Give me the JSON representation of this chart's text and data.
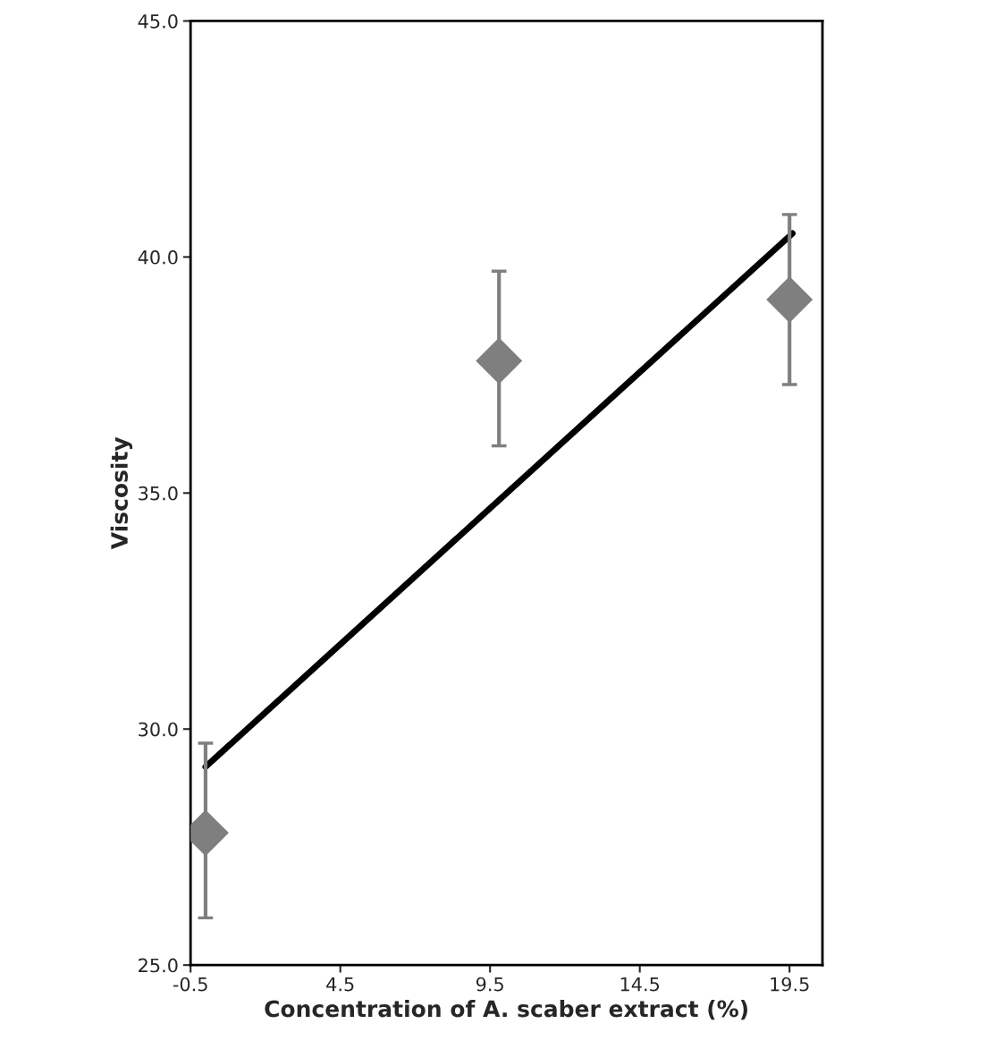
{
  "chart_data": {
    "type": "scatter",
    "xlabel": "Concentration of A. scaber extract (%)",
    "ylabel": "Viscosity",
    "xlim": [
      -0.5,
      20.6
    ],
    "ylim": [
      25,
      45
    ],
    "xticks": [
      -0.5,
      4.5,
      9.5,
      14.5,
      19.5
    ],
    "yticks": [
      {
        "value": 25,
        "label": "25.0"
      },
      {
        "value": 30,
        "label": "30.0"
      },
      {
        "value": 35,
        "label": "35.0"
      },
      {
        "value": 40,
        "label": "40.0"
      },
      {
        "value": 45,
        "label": "45.0"
      }
    ],
    "grid": false,
    "legend": false,
    "marker": "diamond",
    "series": [
      {
        "type": "line",
        "color": "#000000",
        "x": [
          0,
          19.6
        ],
        "values": [
          29.2,
          40.5
        ],
        "marker": "none",
        "line_style": "solid"
      },
      {
        "color": "#7f7f7f",
        "x": [
          0,
          9.8,
          19.5
        ],
        "values": [
          27.8,
          37.8,
          39.1
        ],
        "errors": [
          [
            26.0,
            29.7
          ],
          [
            36.0,
            39.7
          ],
          [
            37.3,
            40.9
          ]
        ]
      }
    ]
  }
}
